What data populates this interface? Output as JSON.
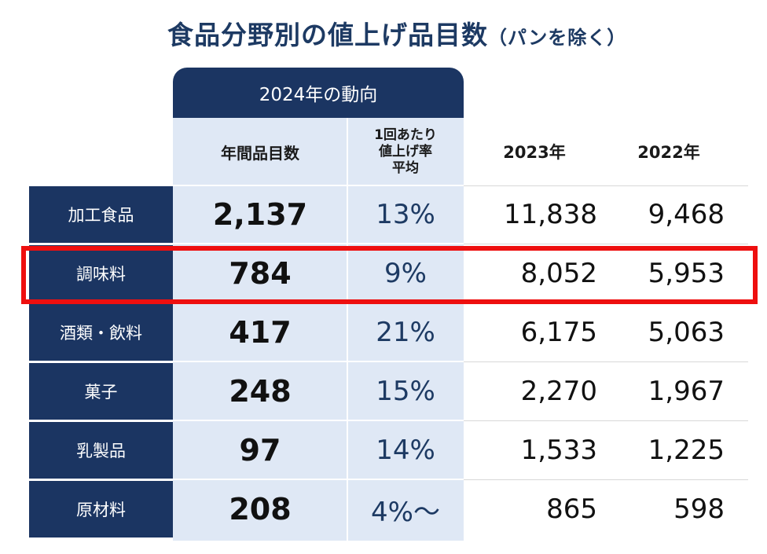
{
  "title": "食品分野別の値上げ品目数",
  "subtitle": "（パンを除く）",
  "group_header": "2024年の動向",
  "headers": {
    "items": "年間品目数",
    "rate_line1": "1回あたり",
    "rate_line2": "値上げ率",
    "rate_line3": "平均",
    "y2023": "2023年",
    "y2022": "2022年"
  },
  "rows": [
    {
      "category": "加工食品",
      "items": "2,137",
      "rate": "13%",
      "y2023": "11,838",
      "y2022": "9,468"
    },
    {
      "category": "調味料",
      "items": "784",
      "rate": "9%",
      "y2023": "8,052",
      "y2022": "5,953"
    },
    {
      "category": "酒類・飲料",
      "items": "417",
      "rate": "21%",
      "y2023": "6,175",
      "y2022": "5,063"
    },
    {
      "category": "菓子",
      "items": "248",
      "rate": "15%",
      "y2023": "2,270",
      "y2022": "1,967"
    },
    {
      "category": "乳製品",
      "items": "97",
      "rate": "14%",
      "y2023": "1,533",
      "y2022": "1,225"
    },
    {
      "category": "原材料",
      "items": "208",
      "rate": "4%～",
      "y2023": "865",
      "y2022": "598"
    }
  ],
  "colors": {
    "navy": "#1b3562",
    "light_panel": "#dfe8f5",
    "highlight_red": "#ee0f0f"
  },
  "highlighted_row": "調味料",
  "chart_data": {
    "type": "table",
    "title": "食品分野別の値上げ品目数（パンを除く）",
    "columns": [
      "",
      "年間品目数",
      "1回あたり値上げ率平均",
      "2023年",
      "2022年"
    ],
    "column_group": "2024年の動向",
    "categories": [
      "加工食品",
      "調味料",
      "酒類・飲料",
      "菓子",
      "乳製品",
      "原材料"
    ],
    "series": [
      {
        "name": "年間品目数",
        "values": [
          2137,
          784,
          417,
          248,
          97,
          208
        ]
      },
      {
        "name": "1回あたり値上げ率平均",
        "values": [
          "13%",
          "9%",
          "21%",
          "15%",
          "14%",
          "4%～"
        ]
      },
      {
        "name": "2023年",
        "values": [
          11838,
          8052,
          6175,
          2270,
          1533,
          865
        ]
      },
      {
        "name": "2022年",
        "values": [
          9468,
          5953,
          5063,
          1967,
          1225,
          598
        ]
      }
    ]
  }
}
